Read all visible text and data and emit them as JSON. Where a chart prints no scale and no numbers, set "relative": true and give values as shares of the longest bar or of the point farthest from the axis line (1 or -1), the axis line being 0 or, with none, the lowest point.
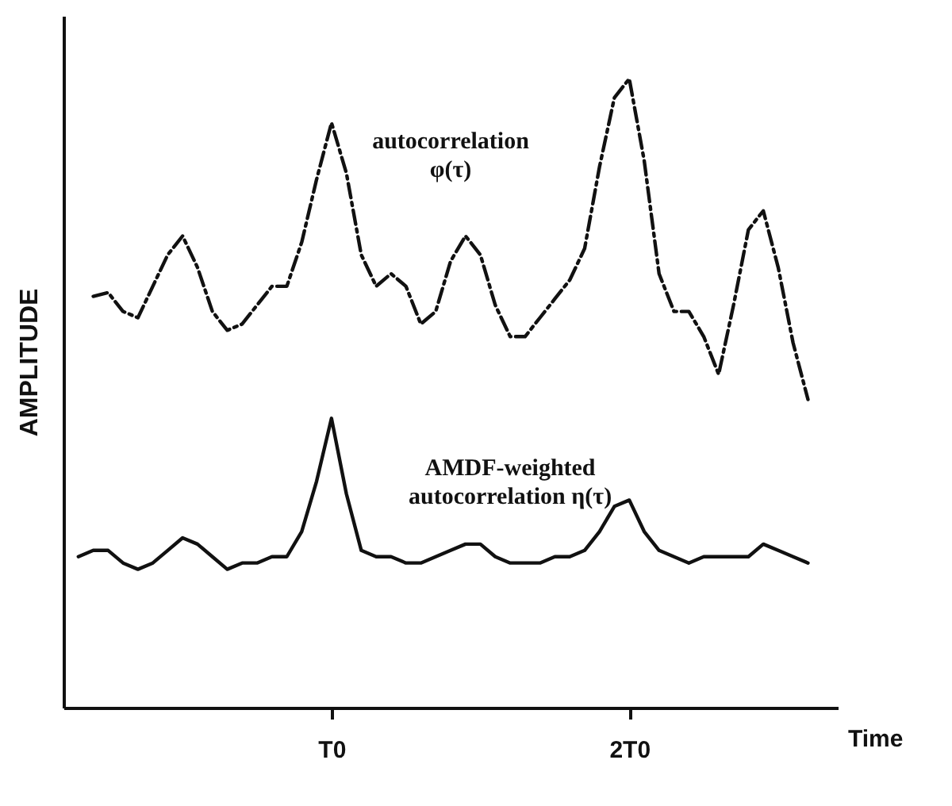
{
  "chart_data": {
    "type": "line",
    "relative": true,
    "xlabel": "Time",
    "ylabel": "AMPLITUDE",
    "categories": [
      null,
      null,
      null,
      null,
      null,
      null,
      null,
      null,
      null,
      null,
      null,
      null,
      null,
      null,
      null,
      null,
      null,
      "T0",
      null,
      null,
      null,
      null,
      null,
      null,
      null,
      null,
      null,
      null,
      null,
      null,
      null,
      null,
      null,
      null,
      null,
      null,
      null,
      "2T0",
      null,
      null,
      null,
      null,
      null,
      null,
      null,
      null,
      null,
      null,
      null,
      null,
      null
    ],
    "series": [
      {
        "name": "autocorrelation φ(τ)",
        "color": "#111111",
        "line_style": "dashed",
        "values": [
          null,
          0.654,
          0.66,
          0.63,
          0.62,
          0.67,
          0.72,
          0.75,
          0.7,
          0.63,
          0.6,
          0.61,
          0.64,
          0.67,
          0.67,
          0.74,
          0.84,
          0.93,
          0.85,
          0.72,
          0.67,
          0.69,
          0.67,
          0.61,
          0.63,
          0.71,
          0.75,
          0.72,
          0.64,
          0.59,
          0.59,
          0.62,
          0.65,
          0.68,
          0.73,
          0.86,
          0.97,
          1.0,
          0.87,
          0.69,
          0.63,
          0.63,
          0.59,
          0.53,
          0.64,
          0.76,
          0.79,
          0.7,
          0.58,
          0.49,
          null
        ]
      },
      {
        "name": "AMDF-weighted autocorrelation η(τ)",
        "color": "#111111",
        "line_style": "solid",
        "values": [
          0.24,
          0.25,
          0.25,
          0.23,
          0.22,
          0.23,
          0.25,
          0.27,
          0.26,
          0.24,
          0.22,
          0.23,
          0.23,
          0.24,
          0.24,
          0.28,
          0.36,
          0.46,
          0.34,
          0.25,
          0.24,
          0.24,
          0.23,
          0.23,
          0.24,
          0.25,
          0.26,
          0.26,
          0.24,
          0.23,
          0.23,
          0.23,
          0.24,
          0.24,
          0.25,
          0.28,
          0.32,
          0.33,
          0.28,
          0.25,
          0.24,
          0.23,
          0.24,
          0.24,
          0.24,
          0.24,
          0.26,
          0.25,
          0.24,
          0.23,
          null
        ]
      }
    ]
  }
}
